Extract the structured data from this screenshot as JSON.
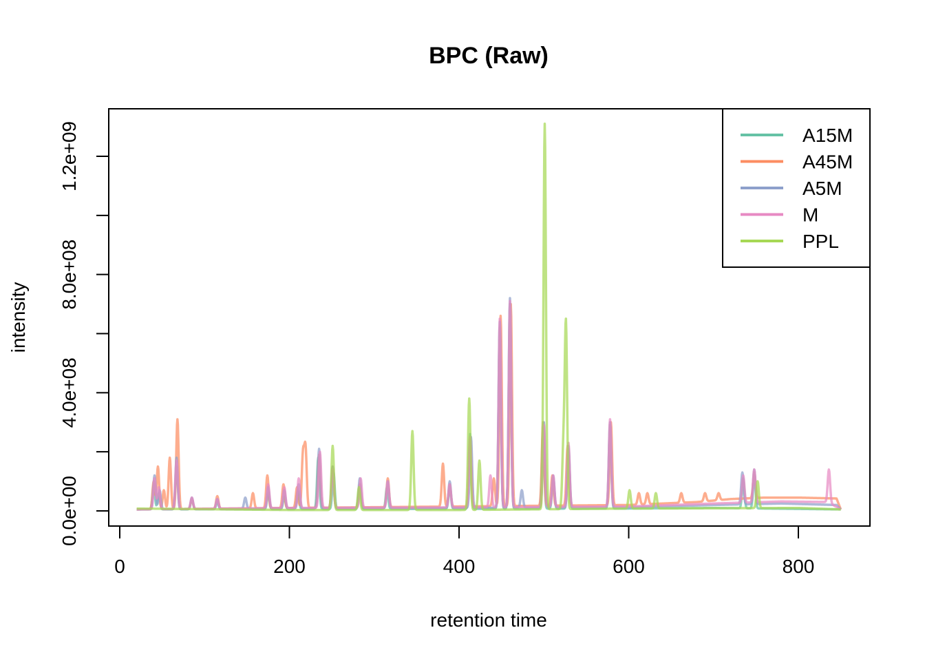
{
  "chart_data": {
    "type": "line",
    "title": "BPC (Raw)",
    "xlabel": "retention time",
    "ylabel": "intensity",
    "xlim": [
      0,
      880
    ],
    "ylim": [
      0,
      1300000000
    ],
    "x_ticks": [
      0,
      200,
      400,
      600,
      800
    ],
    "x_tick_labels": [
      "0",
      "200",
      "400",
      "600",
      "800"
    ],
    "y_ticks": [
      0,
      200000000,
      400000000,
      600000000,
      800000000,
      1000000000,
      1200000000
    ],
    "y_tick_labels": [
      "0.0e+00",
      "",
      "4.0e+08",
      "",
      "8.0e+08",
      "",
      "1.2e+09"
    ],
    "legend_position": "top-right",
    "grid": false,
    "series": [
      {
        "name": "A15M",
        "color": "#66C2A5",
        "baseline": [
          [
            20,
            5000000
          ],
          [
            200,
            6000000
          ],
          [
            400,
            7000000
          ],
          [
            600,
            8000000
          ],
          [
            700,
            10000000
          ],
          [
            850,
            5000000
          ]
        ],
        "peaks": [
          [
            40,
            90000000
          ],
          [
            46,
            60000000
          ],
          [
            67,
            150000000
          ],
          [
            85,
            40000000
          ],
          [
            115,
            30000000
          ],
          [
            175,
            60000000
          ],
          [
            194,
            50000000
          ],
          [
            210,
            70000000
          ],
          [
            234,
            180000000
          ],
          [
            252,
            130000000
          ],
          [
            283,
            90000000
          ],
          [
            315,
            80000000
          ],
          [
            389,
            80000000
          ],
          [
            413,
            260000000
          ],
          [
            448,
            620000000
          ],
          [
            460,
            700000000
          ],
          [
            499,
            280000000
          ],
          [
            511,
            110000000
          ],
          [
            529,
            210000000
          ],
          [
            578,
            290000000
          ],
          [
            735,
            110000000
          ],
          [
            748,
            120000000
          ]
        ]
      },
      {
        "name": "A45M",
        "color": "#FC8D62",
        "baseline": [
          [
            20,
            5000000
          ],
          [
            200,
            10000000
          ],
          [
            400,
            15000000
          ],
          [
            600,
            20000000
          ],
          [
            680,
            30000000
          ],
          [
            720,
            40000000
          ],
          [
            760,
            45000000
          ],
          [
            800,
            45000000
          ],
          [
            845,
            42000000
          ],
          [
            850,
            5000000
          ]
        ],
        "peaks": [
          [
            40,
            100000000
          ],
          [
            45,
            150000000
          ],
          [
            52,
            70000000
          ],
          [
            59,
            180000000
          ],
          [
            68,
            310000000
          ],
          [
            85,
            40000000
          ],
          [
            115,
            50000000
          ],
          [
            157,
            60000000
          ],
          [
            174,
            120000000
          ],
          [
            193,
            90000000
          ],
          [
            209,
            80000000
          ],
          [
            216,
            190000000
          ],
          [
            219,
            210000000
          ],
          [
            235,
            190000000
          ],
          [
            251,
            150000000
          ],
          [
            283,
            90000000
          ],
          [
            316,
            110000000
          ],
          [
            381,
            160000000
          ],
          [
            389,
            90000000
          ],
          [
            413,
            240000000
          ],
          [
            441,
            110000000
          ],
          [
            449,
            660000000
          ],
          [
            461,
            700000000
          ],
          [
            499,
            300000000
          ],
          [
            510,
            120000000
          ],
          [
            528,
            220000000
          ],
          [
            579,
            300000000
          ],
          [
            612,
            60000000
          ],
          [
            622,
            60000000
          ],
          [
            662,
            60000000
          ],
          [
            690,
            60000000
          ],
          [
            706,
            60000000
          ],
          [
            748,
            130000000
          ]
        ]
      },
      {
        "name": "A5M",
        "color": "#8DA0CB",
        "baseline": [
          [
            20,
            5000000
          ],
          [
            200,
            8000000
          ],
          [
            400,
            10000000
          ],
          [
            600,
            12000000
          ],
          [
            700,
            20000000
          ],
          [
            780,
            25000000
          ],
          [
            845,
            20000000
          ],
          [
            850,
            5000000
          ]
        ],
        "peaks": [
          [
            41,
            120000000
          ],
          [
            47,
            70000000
          ],
          [
            67,
            180000000
          ],
          [
            85,
            45000000
          ],
          [
            115,
            40000000
          ],
          [
            148,
            45000000
          ],
          [
            175,
            80000000
          ],
          [
            194,
            70000000
          ],
          [
            211,
            90000000
          ],
          [
            235,
            210000000
          ],
          [
            251,
            150000000
          ],
          [
            283,
            110000000
          ],
          [
            316,
            100000000
          ],
          [
            389,
            100000000
          ],
          [
            414,
            250000000
          ],
          [
            448,
            640000000
          ],
          [
            460,
            720000000
          ],
          [
            474,
            70000000
          ],
          [
            500,
            300000000
          ],
          [
            511,
            120000000
          ],
          [
            529,
            220000000
          ],
          [
            578,
            300000000
          ],
          [
            734,
            130000000
          ],
          [
            748,
            140000000
          ]
        ]
      },
      {
        "name": "M",
        "color": "#E78AC3",
        "baseline": [
          [
            20,
            5000000
          ],
          [
            200,
            10000000
          ],
          [
            400,
            12000000
          ],
          [
            600,
            15000000
          ],
          [
            700,
            25000000
          ],
          [
            780,
            32000000
          ],
          [
            835,
            30000000
          ],
          [
            850,
            5000000
          ]
        ],
        "peaks": [
          [
            41,
            110000000
          ],
          [
            46,
            80000000
          ],
          [
            67,
            170000000
          ],
          [
            85,
            45000000
          ],
          [
            115,
            40000000
          ],
          [
            175,
            90000000
          ],
          [
            194,
            80000000
          ],
          [
            211,
            110000000
          ],
          [
            236,
            200000000
          ],
          [
            251,
            140000000
          ],
          [
            284,
            110000000
          ],
          [
            316,
            100000000
          ],
          [
            389,
            90000000
          ],
          [
            413,
            250000000
          ],
          [
            437,
            120000000
          ],
          [
            448,
            650000000
          ],
          [
            460,
            710000000
          ],
          [
            500,
            290000000
          ],
          [
            511,
            120000000
          ],
          [
            529,
            230000000
          ],
          [
            578,
            310000000
          ],
          [
            735,
            120000000
          ],
          [
            748,
            140000000
          ],
          [
            836,
            140000000
          ]
        ]
      },
      {
        "name": "PPL",
        "color": "#A6D854",
        "baseline": [
          [
            20,
            8000000
          ],
          [
            200,
            3000000
          ],
          [
            400,
            3000000
          ],
          [
            600,
            8000000
          ],
          [
            800,
            10000000
          ],
          [
            850,
            5000000
          ]
        ],
        "peaks": [
          [
            251,
            220000000
          ],
          [
            282,
            80000000
          ],
          [
            345,
            270000000
          ],
          [
            412,
            380000000
          ],
          [
            424,
            170000000
          ],
          [
            501,
            1310000000
          ],
          [
            523,
            210000000
          ],
          [
            526,
            630000000
          ],
          [
            601,
            70000000
          ],
          [
            632,
            60000000
          ],
          [
            752,
            100000000
          ]
        ]
      }
    ]
  }
}
